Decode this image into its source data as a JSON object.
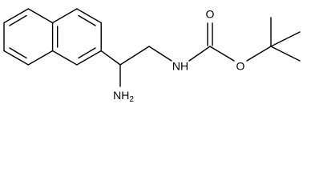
{
  "atoms": [
    {
      "label": "NH",
      "subscript": "2"
    },
    {
      "label": "NH"
    },
    {
      "label": "O"
    },
    {
      "label": "O"
    }
  ]
}
